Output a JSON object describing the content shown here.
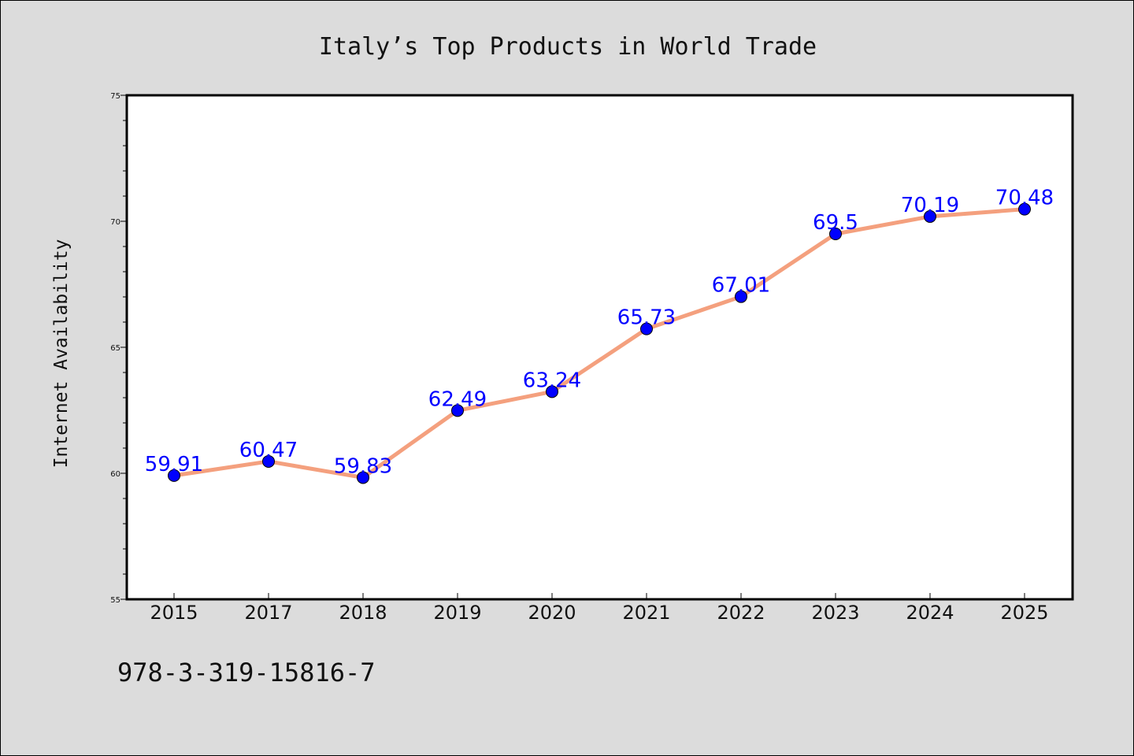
{
  "chart_data": {
    "type": "line",
    "title": "Italy’s Top Products in World Trade",
    "xlabel": "",
    "ylabel": "Internet Availability",
    "categories": [
      "2015",
      "2017",
      "2018",
      "2019",
      "2020",
      "2021",
      "2022",
      "2023",
      "2024",
      "2025"
    ],
    "series": [
      {
        "values": [
          59.91,
          60.47,
          59.83,
          62.49,
          63.24,
          65.73,
          67.01,
          69.5,
          70.19,
          70.48
        ],
        "labels": [
          "59.91",
          "60.47",
          "59.83",
          "62.49",
          "63.24",
          "65.73",
          "67.01",
          "69.5",
          "70.19",
          "70.48"
        ],
        "line_color": "#f4a07e",
        "marker_color": "#0000ff"
      }
    ],
    "ylim": [
      55,
      75
    ],
    "yticks": [
      55,
      60,
      65,
      70,
      75
    ],
    "ytick_labels": [
      "55",
      "60",
      "65",
      "70",
      "75"
    ],
    "grid": false,
    "legend": "none"
  },
  "footer": {
    "isbn": "978-3-319-15816-7"
  },
  "colors": {
    "background": "#dcdcdc",
    "plot_background": "#ffffff",
    "label_color": "#0000ff"
  }
}
